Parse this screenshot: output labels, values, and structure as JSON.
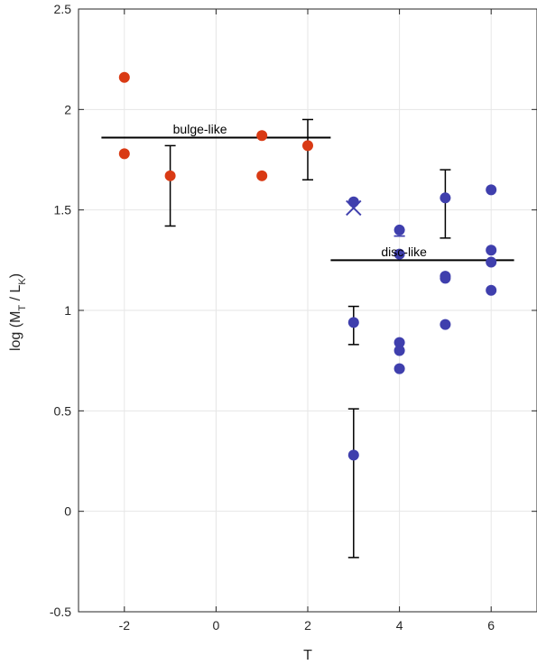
{
  "chart_data": {
    "type": "scatter",
    "title": "",
    "xlabel": "T",
    "ylabel": "log (M_T / L_K)",
    "xlim": [
      -3,
      7
    ],
    "ylim": [
      -0.5,
      2.5
    ],
    "xticks": [
      -2,
      0,
      2,
      4,
      6
    ],
    "yticks": [
      -0.5,
      0,
      0.5,
      1,
      1.5,
      2,
      2.5
    ],
    "xtick_labels": [
      "-2",
      "0",
      "2",
      "4",
      "6"
    ],
    "ytick_labels": [
      "-0.5",
      "0",
      "0.5",
      "1",
      "1.5",
      "2",
      "2.5"
    ],
    "grid": true,
    "colors": {
      "bulge": "#d93a14",
      "disc": "#3f3fad",
      "line": "#000000",
      "grid": "#e6e6e6",
      "axis": "#262626"
    },
    "series": [
      {
        "group": "bulge",
        "marker": "circle",
        "points": [
          {
            "x": -2,
            "y": 2.16
          },
          {
            "x": -2,
            "y": 1.78
          },
          {
            "x": -1,
            "y": 1.67
          },
          {
            "x": 1,
            "y": 1.87
          },
          {
            "x": 1,
            "y": 1.67
          },
          {
            "x": 2,
            "y": 1.82
          }
        ]
      },
      {
        "group": "disc",
        "marker": "circle",
        "points": [
          {
            "x": 3,
            "y": 1.54
          },
          {
            "x": 3,
            "y": 0.94
          },
          {
            "x": 3,
            "y": 0.28
          },
          {
            "x": 4,
            "y": 1.4
          },
          {
            "x": 4,
            "y": 1.28
          },
          {
            "x": 4,
            "y": 0.84
          },
          {
            "x": 4,
            "y": 0.8
          },
          {
            "x": 4,
            "y": 0.71
          },
          {
            "x": 5,
            "y": 1.56
          },
          {
            "x": 5,
            "y": 1.17
          },
          {
            "x": 5,
            "y": 1.16
          },
          {
            "x": 5,
            "y": 0.93
          },
          {
            "x": 6,
            "y": 1.6
          },
          {
            "x": 6,
            "y": 1.3
          },
          {
            "x": 6,
            "y": 1.24
          },
          {
            "x": 6,
            "y": 1.1
          }
        ]
      },
      {
        "group": "disc",
        "marker": "x",
        "points": [
          {
            "x": 3,
            "y": 1.51
          }
        ]
      }
    ],
    "error_bars": [
      {
        "x": -1,
        "low": 1.42,
        "high": 1.82,
        "color": "black"
      },
      {
        "x": 2,
        "low": 1.65,
        "high": 1.95,
        "color": "black"
      },
      {
        "x": 3,
        "low": 0.83,
        "high": 1.02,
        "color": "black"
      },
      {
        "x": 3,
        "low": -0.23,
        "high": 0.51,
        "color": "black"
      },
      {
        "x": 5,
        "low": 1.36,
        "high": 1.7,
        "color": "black"
      },
      {
        "x": 4,
        "low": 1.37,
        "high": 1.37,
        "color": "disc"
      }
    ],
    "reference_lines": [
      {
        "label": "bulge-like",
        "x0": -2.5,
        "x1": 2.5,
        "y": 1.86,
        "label_x": -0.35,
        "label_y": 1.88
      },
      {
        "label": "disc-like",
        "x0": 2.5,
        "x1": 6.5,
        "y": 1.25,
        "label_x": 4.1,
        "label_y": 1.27
      }
    ]
  }
}
